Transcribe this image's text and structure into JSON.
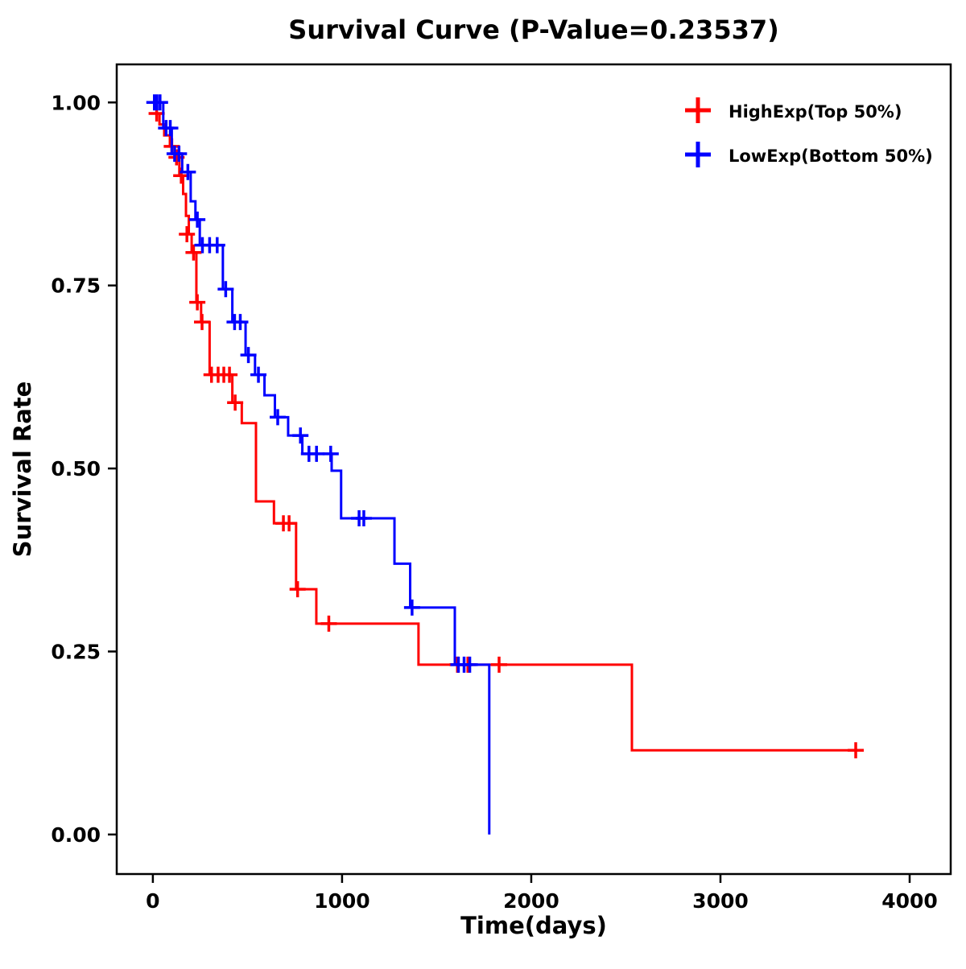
{
  "chart_data": {
    "type": "line",
    "subtype": "kaplan-meier-step-survival",
    "title": "Survival Curve (P-Value=0.23537)",
    "xlabel": "Time(days)",
    "ylabel": "Survival Rate",
    "xlim": [
      -191,
      4217
    ],
    "ylim": [
      -0.054,
      1.052
    ],
    "xticks": [
      0,
      1000,
      2000,
      3000,
      4000
    ],
    "xtick_labels": [
      "0",
      "1000",
      "2000",
      "3000",
      "4000"
    ],
    "yticks": [
      0,
      0.25,
      0.5,
      0.75,
      1
    ],
    "ytick_labels": [
      "0.00",
      "0.25",
      "0.50",
      "0.75",
      "1.00"
    ],
    "grid": false,
    "legend_position": "top-right-inside",
    "axis_color": "#000000",
    "background_color": "#ffffff",
    "series": [
      {
        "name": "HighExp(Top 50%)",
        "color": "#FF0000",
        "steps": [
          [
            0,
            0.985
          ],
          [
            35,
            0.97
          ],
          [
            60,
            0.955
          ],
          [
            90,
            0.94
          ],
          [
            115,
            0.925
          ],
          [
            140,
            0.9
          ],
          [
            160,
            0.875
          ],
          [
            175,
            0.845
          ],
          [
            190,
            0.82
          ],
          [
            205,
            0.795
          ],
          [
            230,
            0.727
          ],
          [
            255,
            0.7
          ],
          [
            300,
            0.628
          ],
          [
            420,
            0.59
          ],
          [
            470,
            0.562
          ],
          [
            545,
            0.455
          ],
          [
            640,
            0.425
          ],
          [
            757,
            0.335
          ],
          [
            864,
            0.288
          ],
          [
            1404,
            0.232
          ],
          [
            2532,
            0.115
          ],
          [
            3715,
            0.115
          ]
        ],
        "censors": [
          [
            20,
            0.985
          ],
          [
            100,
            0.94
          ],
          [
            125,
            0.925
          ],
          [
            150,
            0.9
          ],
          [
            180,
            0.82
          ],
          [
            215,
            0.795
          ],
          [
            235,
            0.727
          ],
          [
            260,
            0.7
          ],
          [
            310,
            0.628
          ],
          [
            345,
            0.628
          ],
          [
            375,
            0.628
          ],
          [
            405,
            0.628
          ],
          [
            435,
            0.59
          ],
          [
            690,
            0.425
          ],
          [
            720,
            0.425
          ],
          [
            765,
            0.335
          ],
          [
            930,
            0.288
          ],
          [
            1610,
            0.232
          ],
          [
            1665,
            0.232
          ],
          [
            1830,
            0.232
          ],
          [
            3715,
            0.115
          ]
        ]
      },
      {
        "name": "LowExp(Bottom 50%)",
        "color": "#0000FF",
        "steps": [
          [
            0,
            1.0
          ],
          [
            55,
            0.965
          ],
          [
            100,
            0.93
          ],
          [
            155,
            0.905
          ],
          [
            200,
            0.865
          ],
          [
            225,
            0.84
          ],
          [
            248,
            0.805
          ],
          [
            370,
            0.745
          ],
          [
            420,
            0.7
          ],
          [
            490,
            0.655
          ],
          [
            540,
            0.628
          ],
          [
            590,
            0.6
          ],
          [
            645,
            0.57
          ],
          [
            715,
            0.545
          ],
          [
            790,
            0.52
          ],
          [
            945,
            0.497
          ],
          [
            995,
            0.432
          ],
          [
            1277,
            0.37
          ],
          [
            1360,
            0.31
          ],
          [
            1596,
            0.232
          ],
          [
            1778,
            0.232
          ],
          [
            1778,
            0.0
          ]
        ],
        "censors": [
          [
            8,
            1.0
          ],
          [
            22,
            1.0
          ],
          [
            38,
            1.0
          ],
          [
            70,
            0.965
          ],
          [
            92,
            0.965
          ],
          [
            115,
            0.93
          ],
          [
            138,
            0.93
          ],
          [
            185,
            0.905
          ],
          [
            235,
            0.84
          ],
          [
            262,
            0.805
          ],
          [
            300,
            0.805
          ],
          [
            340,
            0.805
          ],
          [
            385,
            0.745
          ],
          [
            432,
            0.7
          ],
          [
            462,
            0.7
          ],
          [
            505,
            0.655
          ],
          [
            558,
            0.628
          ],
          [
            660,
            0.57
          ],
          [
            780,
            0.545
          ],
          [
            825,
            0.52
          ],
          [
            865,
            0.52
          ],
          [
            940,
            0.52
          ],
          [
            1090,
            0.432
          ],
          [
            1115,
            0.432
          ],
          [
            1370,
            0.31
          ],
          [
            1615,
            0.232
          ],
          [
            1645,
            0.232
          ],
          [
            1675,
            0.232
          ]
        ]
      }
    ]
  },
  "legend": {
    "items": [
      {
        "label": "HighExp(Top 50%)",
        "color": "#FF0000",
        "marker": "plus"
      },
      {
        "label": "LowExp(Bottom 50%)",
        "color": "#0000FF",
        "marker": "plus"
      }
    ]
  }
}
